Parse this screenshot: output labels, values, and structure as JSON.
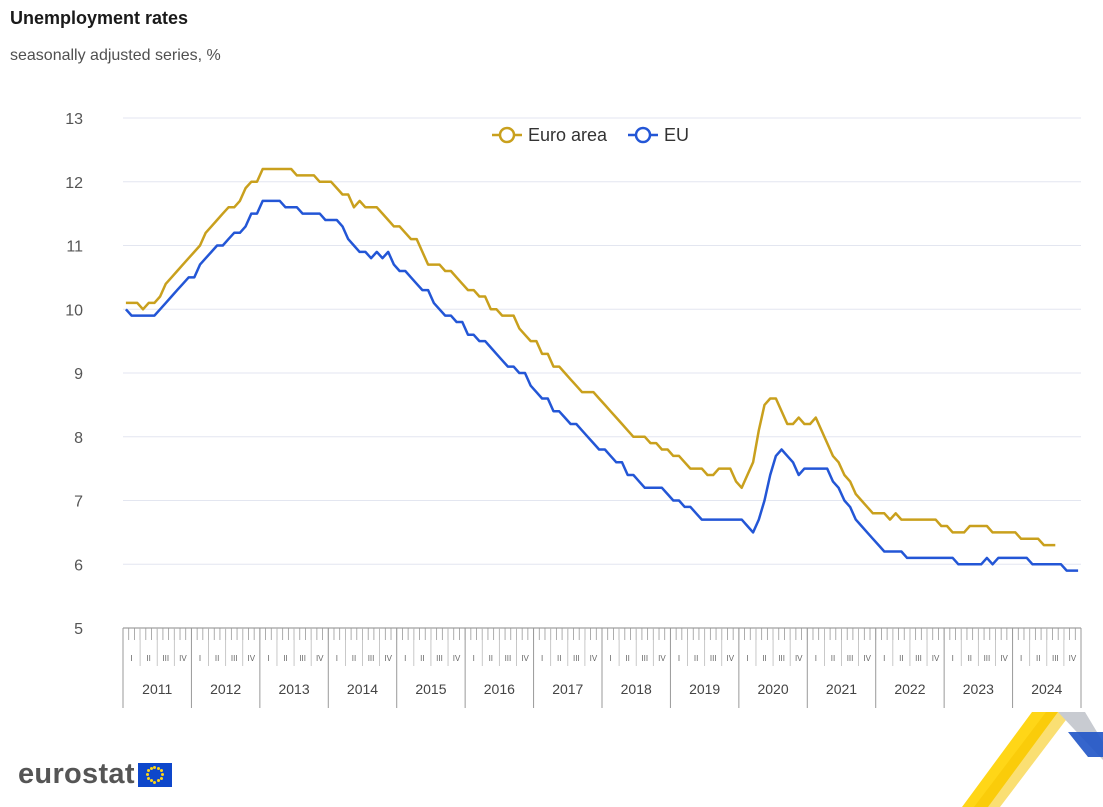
{
  "title": "Unemployment rates",
  "subtitle": "seasonally adjusted series, %",
  "brand": {
    "name": "eurostat",
    "logo_icon": "eu-flag-icon"
  },
  "colors": {
    "euro_area": "#c9a01d",
    "eu": "#2356d6",
    "grid": "#e3e6f0"
  },
  "chart_data": {
    "type": "line",
    "start": "2011-01",
    "frequency": "monthly",
    "ylim": [
      5,
      13
    ],
    "yticks": [
      5,
      6,
      7,
      8,
      9,
      10,
      11,
      12,
      13
    ],
    "years": [
      "2011",
      "2012",
      "2013",
      "2014",
      "2015",
      "2016",
      "2017",
      "2018",
      "2019",
      "2020",
      "2021",
      "2022",
      "2023",
      "2024"
    ],
    "quarters": [
      "I",
      "II",
      "III",
      "IV"
    ],
    "legend": "top-center",
    "grid": true,
    "series": [
      {
        "name": "Euro area",
        "values": [
          10.1,
          10.1,
          10.1,
          10.0,
          10.1,
          10.1,
          10.2,
          10.4,
          10.5,
          10.6,
          10.7,
          10.8,
          10.9,
          11.0,
          11.2,
          11.3,
          11.4,
          11.5,
          11.6,
          11.6,
          11.7,
          11.9,
          12.0,
          12.0,
          12.2,
          12.2,
          12.2,
          12.2,
          12.2,
          12.2,
          12.1,
          12.1,
          12.1,
          12.1,
          12.0,
          12.0,
          12.0,
          11.9,
          11.8,
          11.8,
          11.6,
          11.7,
          11.6,
          11.6,
          11.6,
          11.5,
          11.4,
          11.3,
          11.3,
          11.2,
          11.1,
          11.1,
          10.9,
          10.7,
          10.7,
          10.7,
          10.6,
          10.6,
          10.5,
          10.4,
          10.3,
          10.3,
          10.2,
          10.2,
          10.0,
          10.0,
          9.9,
          9.9,
          9.9,
          9.7,
          9.6,
          9.5,
          9.5,
          9.3,
          9.3,
          9.1,
          9.1,
          9.0,
          8.9,
          8.8,
          8.7,
          8.7,
          8.7,
          8.6,
          8.5,
          8.4,
          8.3,
          8.2,
          8.1,
          8.0,
          8.0,
          8.0,
          7.9,
          7.9,
          7.8,
          7.8,
          7.7,
          7.7,
          7.6,
          7.5,
          7.5,
          7.5,
          7.4,
          7.4,
          7.5,
          7.5,
          7.5,
          7.3,
          7.2,
          7.4,
          7.6,
          8.1,
          8.5,
          8.6,
          8.6,
          8.4,
          8.2,
          8.2,
          8.3,
          8.2,
          8.2,
          8.3,
          8.1,
          7.9,
          7.7,
          7.6,
          7.4,
          7.3,
          7.1,
          7.0,
          6.9,
          6.8,
          6.8,
          6.8,
          6.7,
          6.8,
          6.7,
          6.7,
          6.7,
          6.7,
          6.7,
          6.7,
          6.7,
          6.6,
          6.6,
          6.5,
          6.5,
          6.5,
          6.6,
          6.6,
          6.6,
          6.6,
          6.5,
          6.5,
          6.5,
          6.5,
          6.5,
          6.4,
          6.4,
          6.4,
          6.4,
          6.3,
          6.3,
          6.3
        ]
      },
      {
        "name": "EU",
        "values": [
          10.0,
          9.9,
          9.9,
          9.9,
          9.9,
          9.9,
          10.0,
          10.1,
          10.2,
          10.3,
          10.4,
          10.5,
          10.5,
          10.7,
          10.8,
          10.9,
          11.0,
          11.0,
          11.1,
          11.2,
          11.2,
          11.3,
          11.5,
          11.5,
          11.7,
          11.7,
          11.7,
          11.7,
          11.6,
          11.6,
          11.6,
          11.5,
          11.5,
          11.5,
          11.5,
          11.4,
          11.4,
          11.4,
          11.3,
          11.1,
          11.0,
          10.9,
          10.9,
          10.8,
          10.9,
          10.8,
          10.9,
          10.7,
          10.6,
          10.6,
          10.5,
          10.4,
          10.3,
          10.3,
          10.1,
          10.0,
          9.9,
          9.9,
          9.8,
          9.8,
          9.6,
          9.6,
          9.5,
          9.5,
          9.4,
          9.3,
          9.2,
          9.1,
          9.1,
          9.0,
          9.0,
          8.8,
          8.7,
          8.6,
          8.6,
          8.4,
          8.4,
          8.3,
          8.2,
          8.2,
          8.1,
          8.0,
          7.9,
          7.8,
          7.8,
          7.7,
          7.6,
          7.6,
          7.4,
          7.4,
          7.3,
          7.2,
          7.2,
          7.2,
          7.2,
          7.1,
          7.0,
          7.0,
          6.9,
          6.9,
          6.8,
          6.7,
          6.7,
          6.7,
          6.7,
          6.7,
          6.7,
          6.7,
          6.7,
          6.6,
          6.5,
          6.7,
          7.0,
          7.4,
          7.7,
          7.8,
          7.7,
          7.6,
          7.4,
          7.5,
          7.5,
          7.5,
          7.5,
          7.5,
          7.3,
          7.2,
          7.0,
          6.9,
          6.7,
          6.6,
          6.5,
          6.4,
          6.3,
          6.2,
          6.2,
          6.2,
          6.2,
          6.1,
          6.1,
          6.1,
          6.1,
          6.1,
          6.1,
          6.1,
          6.1,
          6.1,
          6.0,
          6.0,
          6.0,
          6.0,
          6.0,
          6.1,
          6.0,
          6.1,
          6.1,
          6.1,
          6.1,
          6.1,
          6.1,
          6.0,
          6.0,
          6.0,
          6.0,
          6.0,
          6.0,
          5.9,
          5.9,
          5.9
        ]
      }
    ]
  }
}
